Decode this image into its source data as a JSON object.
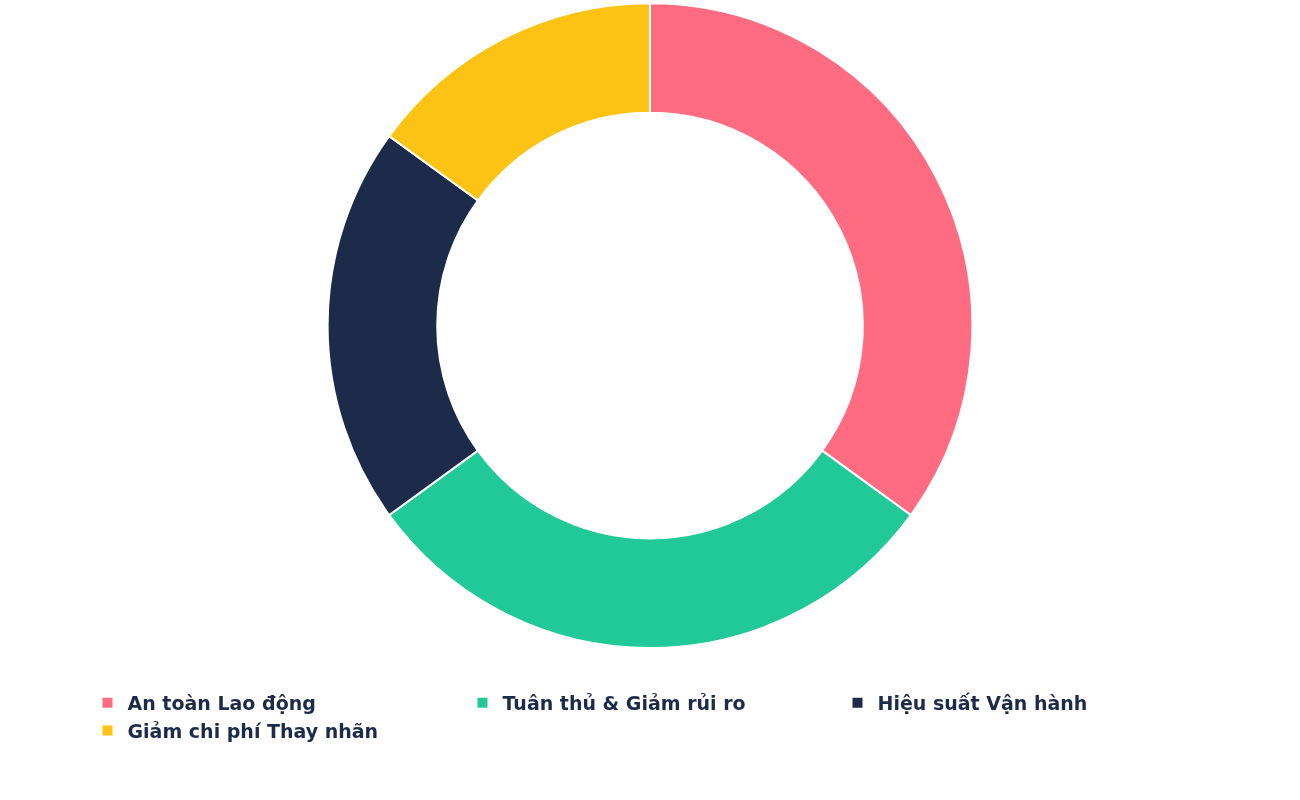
{
  "chart_data": {
    "type": "donut",
    "categories": [
      "An toàn Lao động",
      "Tuân thủ & Giảm rủi ro",
      "Hiệu suất Vận hành",
      "Giảm chi phí Thay nhãn"
    ],
    "values": [
      35,
      30,
      20,
      15
    ],
    "colors": [
      "#ff6b81",
      "#20c997",
      "#1c2b4a",
      "#fdc314"
    ],
    "legend": "bottom"
  }
}
